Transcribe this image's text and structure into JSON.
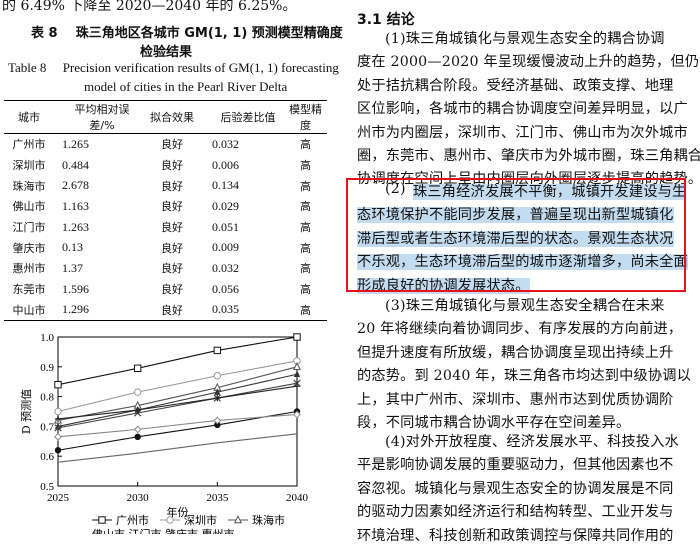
{
  "top_line": "的 6.49% 下降至 2020—2040 年的 6.25%。",
  "table": {
    "caption_zh_label": "表 8",
    "caption_zh_text": "珠三角地区各城市 GM(1, 1) 预测模型精确度",
    "caption_zh_text2": "检验结果",
    "caption_en_label": "Table 8",
    "caption_en_text": "Precision verification results of GM(1, 1) forecasting",
    "caption_en_text2": "model of cities in the Pearl River Delta",
    "headers": [
      "城市",
      "平均相对误差/%",
      "拟合效果",
      "后验差比值",
      "模型精度"
    ],
    "rows": [
      [
        "广州市",
        "1.265",
        "良好",
        "0.032",
        "高"
      ],
      [
        "深圳市",
        "0.484",
        "良好",
        "0.006",
        "高"
      ],
      [
        "珠海市",
        "2.678",
        "良好",
        "0.134",
        "高"
      ],
      [
        "佛山市",
        "1.163",
        "良好",
        "0.029",
        "高"
      ],
      [
        "江门市",
        "1.263",
        "良好",
        "0.051",
        "高"
      ],
      [
        "肇庆市",
        "0.13",
        "良好",
        "0.009",
        "高"
      ],
      [
        "惠州市",
        "1.37",
        "良好",
        "0.032",
        "高"
      ],
      [
        "东莞市",
        "1.596",
        "良好",
        "0.056",
        "高"
      ],
      [
        "中山市",
        "1.296",
        "良好",
        "0.035",
        "高"
      ]
    ]
  },
  "chart_data": {
    "type": "line",
    "x": [
      2025,
      2030,
      2035,
      2040
    ],
    "xlabel": "年份",
    "ylabel": "D 预测值",
    "ylim": [
      0.5,
      1.0
    ],
    "yticks": [
      "0.5",
      "0.6",
      "0.7",
      "0.8",
      "0.9",
      "1.0"
    ],
    "xticks": [
      "2025",
      "2030",
      "2035",
      "2040"
    ],
    "grid": false,
    "legend_position": "bottom",
    "series": [
      {
        "name": "广州市",
        "marker": "square-open",
        "values": [
          0.84,
          0.895,
          0.955,
          1.0
        ]
      },
      {
        "name": "深圳市",
        "marker": "circle-open",
        "values": [
          0.75,
          0.815,
          0.87,
          0.92
        ]
      },
      {
        "name": "珠海市",
        "marker": "triangle-open",
        "values": [
          0.72,
          0.77,
          0.83,
          0.9
        ]
      },
      {
        "name": "",
        "marker": "triangle",
        "values": [
          0.7,
          0.755,
          0.815,
          0.875
        ]
      },
      {
        "name": "",
        "marker": "cross",
        "values": [
          0.695,
          0.745,
          0.795,
          0.845
        ]
      },
      {
        "name": "",
        "marker": "plus",
        "values": [
          0.725,
          0.755,
          0.795,
          0.835
        ]
      },
      {
        "name": "",
        "marker": "circle",
        "values": [
          0.62,
          0.665,
          0.705,
          0.75
        ]
      },
      {
        "name": "",
        "marker": "diamond-open",
        "values": [
          0.665,
          0.69,
          0.72,
          0.74
        ]
      },
      {
        "name": "",
        "marker": "none",
        "values": [
          0.58,
          0.61,
          0.645,
          0.675
        ]
      }
    ],
    "legend_visible": [
      "广州市",
      "深圳市",
      "珠海市"
    ],
    "legend_cut_text": "佛山市    江门市    肇庆市    惠州市"
  },
  "right": {
    "section_title": "3.1   结论",
    "para1": [
      "(1)珠三角城镇化与景观生态安全的耦合协调",
      "度在 2000—2020 年呈现缓慢波动上升的趋势，但仍",
      "处于拮抗耦合阶段。受经济基础、政策支撑、地理",
      "区位影响，各城市的耦合协调度空间差异明显，以广",
      "州市为内圈层，深圳市、江门市、佛山市为次外城市",
      "圈，东莞市、惠州市、肇庆市为外城市圈，珠三角耦合",
      "协调度在空间上呈由内圈层向外圈层逐步提高的趋势。"
    ],
    "para2_prefix": "(2)",
    "para2": [
      "珠三角经济发展不平衡，城镇开发建设与生",
      "态环境保护不能同步发展，普遍呈现出新型城镇化",
      "滞后型或者生态环境滞后型的状态。景观生态状况",
      "不乐观，生态环境滞后型的城市逐渐增多，尚未全面",
      "形成良好的协调发展状态。"
    ],
    "para3": [
      "(3)珠三角城镇化与景观生态安全耦合在未来",
      "20 年将继续向着协调同步、有序发展的方向前进，",
      "但提升速度有所放缓，耦合协调度呈现出持续上升",
      "的态势。到 2040 年，珠三角各市均达到中级协调以",
      "上，其中广州市、深圳市、惠州市达到优质协调阶",
      "段，不同城市耦合协调水平存在空间差异。"
    ],
    "para4": [
      "(4)对外开放程度、经济发展水平、科技投入水",
      "平是影响协调发展的重要驱动力，但其他因素也不",
      "容忽视。城镇化与景观生态安全的协调发展是不同",
      "的驱动力因素如经济运行和结构转型、工业开发与",
      "环境治理、科技创新和政策调控与保障共同作用的"
    ]
  }
}
